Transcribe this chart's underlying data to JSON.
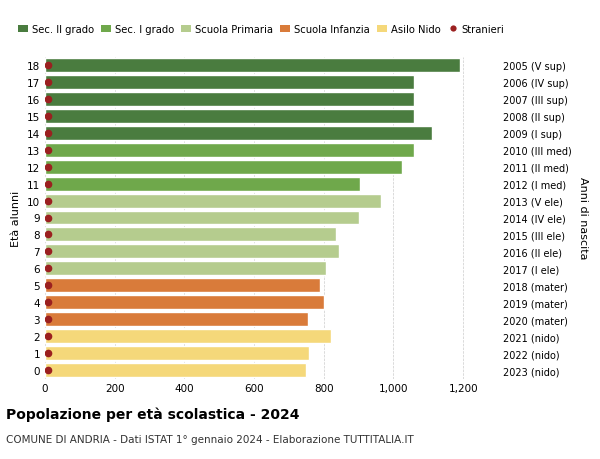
{
  "ages": [
    18,
    17,
    16,
    15,
    14,
    13,
    12,
    11,
    10,
    9,
    8,
    7,
    6,
    5,
    4,
    3,
    2,
    1,
    0
  ],
  "right_labels": [
    "2005 (V sup)",
    "2006 (IV sup)",
    "2007 (III sup)",
    "2008 (II sup)",
    "2009 (I sup)",
    "2010 (III med)",
    "2011 (II med)",
    "2012 (I med)",
    "2013 (V ele)",
    "2014 (IV ele)",
    "2015 (III ele)",
    "2016 (II ele)",
    "2017 (I ele)",
    "2018 (mater)",
    "2019 (mater)",
    "2020 (mater)",
    "2021 (nido)",
    "2022 (nido)",
    "2023 (nido)"
  ],
  "bar_values": [
    1190,
    1060,
    1060,
    1060,
    1110,
    1060,
    1025,
    905,
    965,
    900,
    835,
    845,
    805,
    790,
    800,
    755,
    820,
    758,
    748
  ],
  "stranieri_values": [
    8,
    8,
    8,
    8,
    8,
    8,
    8,
    8,
    8,
    8,
    8,
    8,
    8,
    8,
    8,
    8,
    8,
    8,
    8
  ],
  "bar_colors": [
    "#4a7c3f",
    "#4a7c3f",
    "#4a7c3f",
    "#4a7c3f",
    "#4a7c3f",
    "#6fa84b",
    "#6fa84b",
    "#6fa84b",
    "#b5cc8e",
    "#b5cc8e",
    "#b5cc8e",
    "#b5cc8e",
    "#b5cc8e",
    "#d97b3a",
    "#d97b3a",
    "#d97b3a",
    "#f5d87a",
    "#f5d87a",
    "#f5d87a"
  ],
  "legend_labels": [
    "Sec. II grado",
    "Sec. I grado",
    "Scuola Primaria",
    "Scuola Infanzia",
    "Asilo Nido",
    "Stranieri"
  ],
  "legend_colors": [
    "#4a7c3f",
    "#6fa84b",
    "#b5cc8e",
    "#d97b3a",
    "#f5d87a",
    "#cc2222"
  ],
  "stranieri_color": "#9b2020",
  "title": "Popolazione per età scolastica - 2024",
  "subtitle": "COMUNE DI ANDRIA - Dati ISTAT 1° gennaio 2024 - Elaborazione TUTTITALIA.IT",
  "xlabel_anni": "Anni di nascita",
  "ylabel": "Età alunni",
  "xlim": [
    0,
    1300
  ],
  "xticks": [
    0,
    200,
    400,
    600,
    800,
    1000,
    1200
  ],
  "xtick_labels": [
    "0",
    "200",
    "400",
    "600",
    "800",
    "1,000",
    "1,200"
  ],
  "bg_color": "#ffffff",
  "bar_height": 0.82,
  "grid_color": "#cccccc"
}
